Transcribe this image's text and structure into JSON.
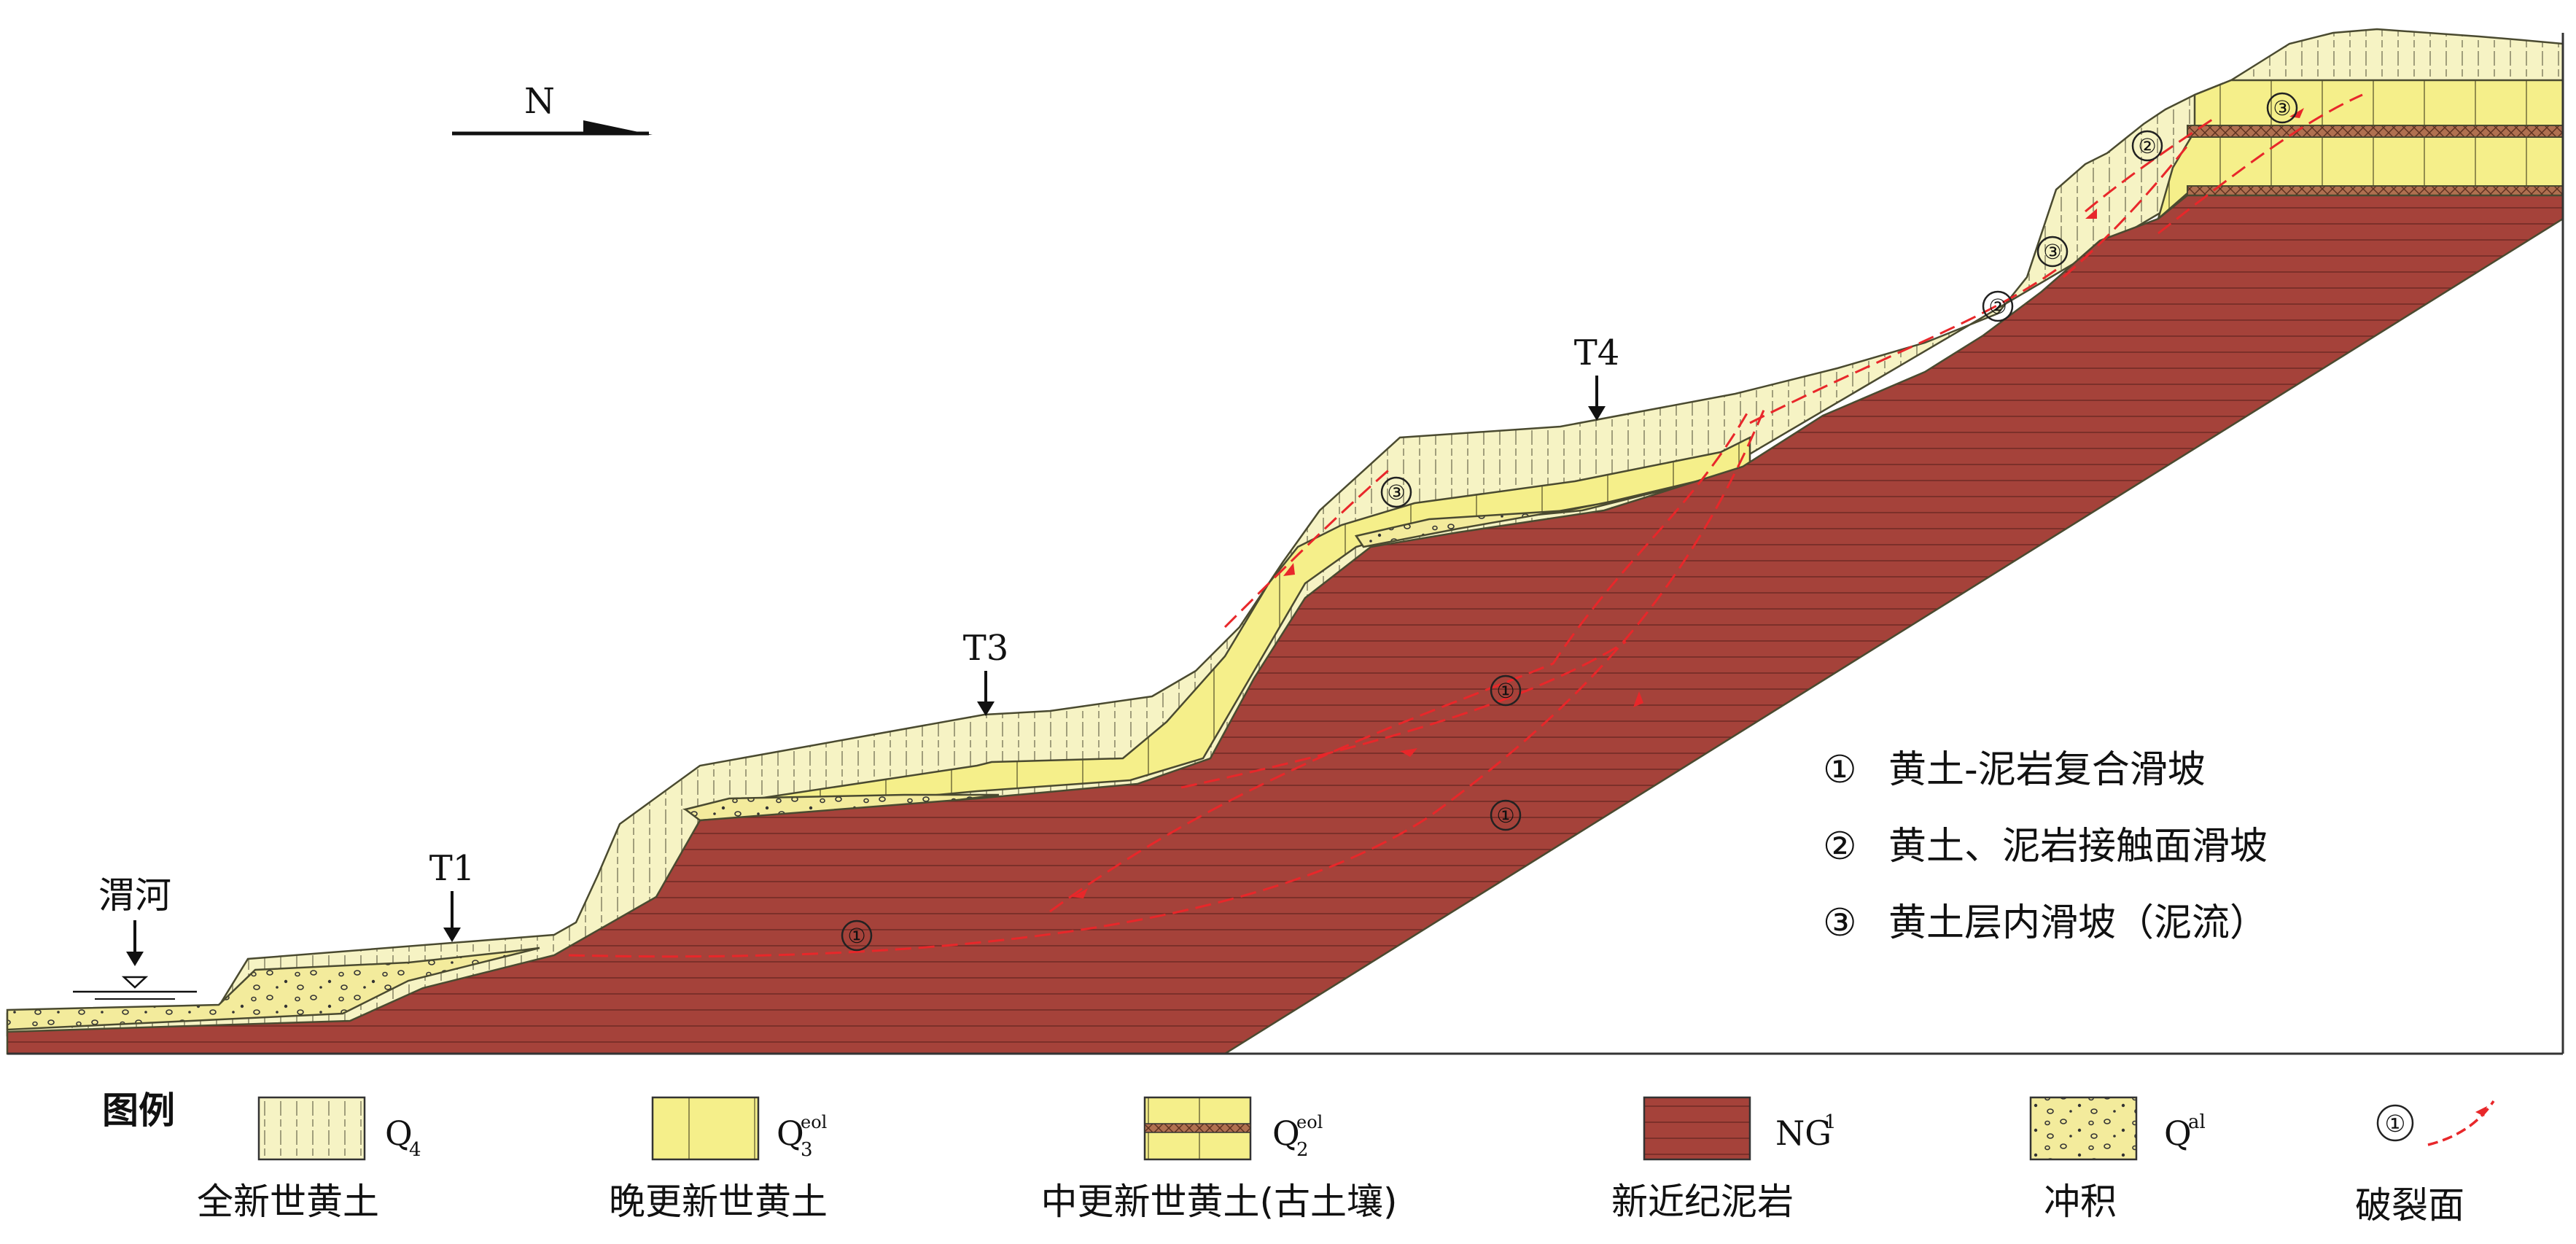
{
  "north": {
    "label": "N"
  },
  "river": {
    "label": "渭河"
  },
  "terraces": [
    {
      "id": "t1",
      "label": "T1"
    },
    {
      "id": "t3",
      "label": "T3"
    },
    {
      "id": "t4",
      "label": "T4"
    }
  ],
  "slide_markers": [
    "①",
    "②",
    "③"
  ],
  "slide_types": [
    {
      "num": "①",
      "text": "黄土-泥岩复合滑坡"
    },
    {
      "num": "②",
      "text": "黄土、泥岩接触面滑坡"
    },
    {
      "num": "③",
      "text": "黄土层内滑坡（泥流）"
    }
  ],
  "legend": {
    "title": "图例",
    "items": [
      {
        "symbol": "Q",
        "sub": "4",
        "sup": "",
        "name": "全新世黄土"
      },
      {
        "symbol": "Q",
        "sub": "3",
        "sup": "eol",
        "name": "晚更新世黄土"
      },
      {
        "symbol": "Q",
        "sub": "2",
        "sup": "eol",
        "name": "中更新世黄土(古土壤)"
      },
      {
        "symbol": "NG",
        "sub": "",
        "sup": "1",
        "name": "新近纪泥岩"
      },
      {
        "symbol": "Q",
        "sub": "",
        "sup": "al",
        "name": "冲积"
      },
      {
        "symbol": "①",
        "sub": "",
        "sup": "",
        "name": "破裂面"
      }
    ]
  },
  "colors": {
    "q4": "#f6f3c4",
    "q3": "#f5ef8a",
    "q2": "#f5ef8a",
    "paleosol": "#b07050",
    "mudstone": "#a5423a",
    "alluvium": "#f3eb9c",
    "rupture": "#e8272a"
  }
}
